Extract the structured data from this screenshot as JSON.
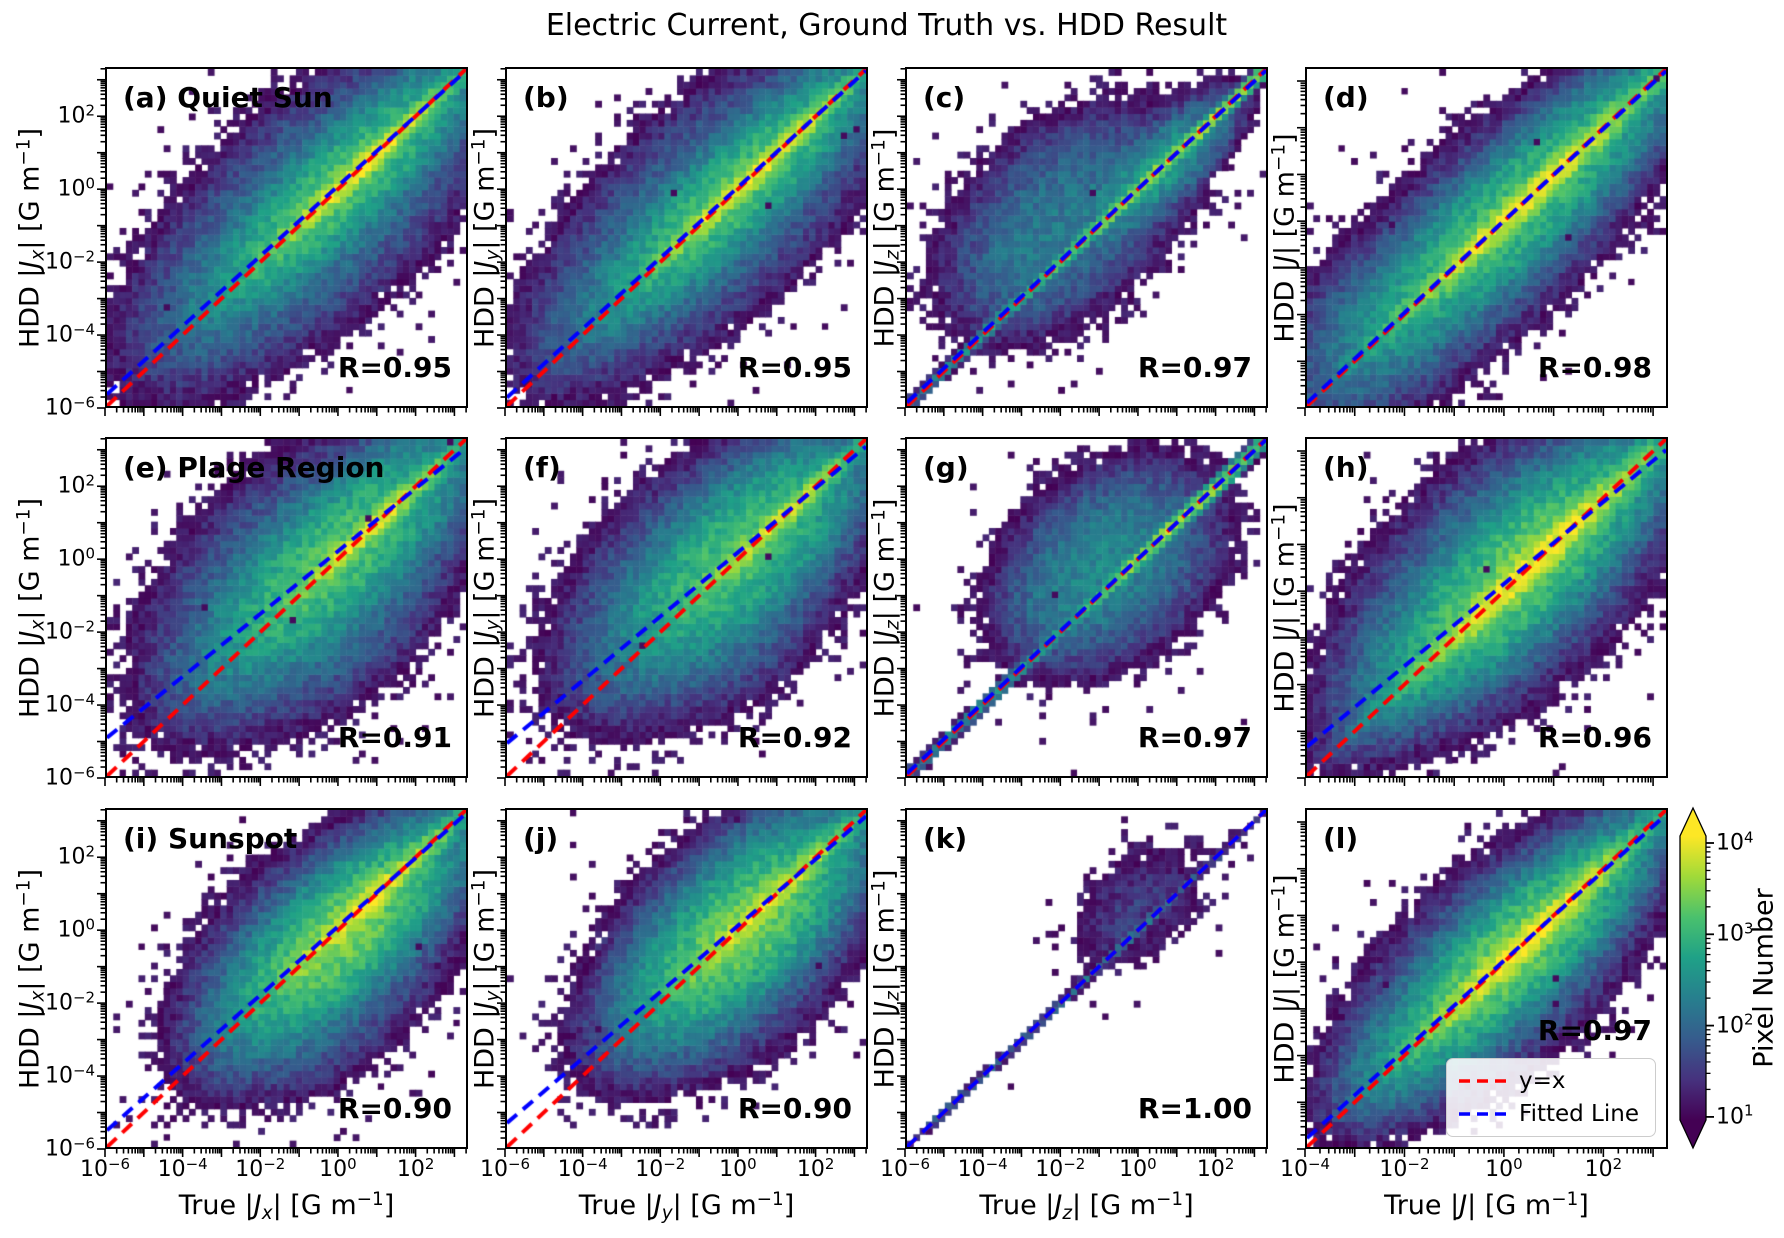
{
  "figure": {
    "title": "Electric Current, Ground Truth vs. HDD Result",
    "background": "#ffffff",
    "text_color": "#000000"
  },
  "legend": {
    "items": [
      {
        "label": "y=x",
        "color": "#ff0000",
        "style": "dashed"
      },
      {
        "label": "Fitted Line",
        "color": "#0000ff",
        "style": "dashed"
      }
    ]
  },
  "colorbar": {
    "label": "Pixel Number",
    "tick_exponents": [
      4,
      3,
      2,
      1
    ],
    "extend": "both",
    "colormap": "viridis",
    "top_arrow_color": "#fde725",
    "bottom_arrow_color": "#440154"
  },
  "chart_data": {
    "type": "heatmap",
    "title": "Electric Current, Ground Truth vs. HDD Result",
    "grid": {
      "rows": 3,
      "cols": 4
    },
    "row_regions": [
      "Quiet Sun",
      "Plage Region",
      "Sunspot"
    ],
    "col_quantities": [
      "|J_x|",
      "|J_y|",
      "|J_z|",
      "|J|"
    ],
    "axes_units": "[G m^-1]",
    "scale": "log-log",
    "count_scale": {
      "log_min": 0.78,
      "log_max": 4.48
    },
    "line_colors": {
      "y_equals_x": "#ff0000",
      "fitted": "#0000ff"
    },
    "viridis_stops": [
      "#440154",
      "#46327e",
      "#365c8d",
      "#277f8e",
      "#1fa187",
      "#4ac16d",
      "#a0da39",
      "#fde725"
    ],
    "panels": [
      {
        "id": "a",
        "label": "(a)",
        "region": "Quiet Sun",
        "row": 0,
        "col": 0,
        "r_label": "R=0.95",
        "r_value": 0.95,
        "ylabel": "HDD |*J*~*x*~| [G m^−1^]",
        "x_range": [
          -6,
          3.35
        ],
        "y_range": [
          -6,
          3.35
        ],
        "x_tick_exponents": [
          -6,
          -4,
          -2,
          0,
          2
        ],
        "y_tick_exponents": [
          2,
          0,
          -2,
          -4,
          -6
        ],
        "fit": {
          "slope": 0.96,
          "pivot": 2.2
        },
        "seed": 11,
        "density": [
          {
            "cx": 0.6,
            "cy": 0.6,
            "sl": 1.5,
            "sp": 0.13,
            "amp": 25000
          },
          {
            "cx": 0.1,
            "cy": 0.1,
            "sl": 2.0,
            "sp": 0.5,
            "amp": 3000
          },
          {
            "cx": -0.5,
            "cy": -0.5,
            "sl": 2.5,
            "sp": 1.15,
            "amp": 260
          },
          {
            "cx": -3.2,
            "cy": -3.2,
            "sl": 1.5,
            "sp": 0.9,
            "amp": 45
          }
        ]
      },
      {
        "id": "b",
        "label": "(b)",
        "region": null,
        "row": 0,
        "col": 1,
        "r_label": "R=0.95",
        "r_value": 0.95,
        "ylabel": "HDD |*J*~*y*~| [G m^−1^]",
        "x_range": [
          -6,
          3.35
        ],
        "y_range": [
          -6,
          3.35
        ],
        "x_tick_exponents": [
          -6,
          -4,
          -2,
          0,
          2
        ],
        "y_tick_exponents": [
          2,
          0,
          -2,
          -4,
          -6
        ],
        "fit": {
          "slope": 0.97,
          "pivot": 1.8
        },
        "seed": 22,
        "density": [
          {
            "cx": 0.5,
            "cy": 0.5,
            "sl": 1.6,
            "sp": 0.13,
            "amp": 25000
          },
          {
            "cx": 0.0,
            "cy": 0.0,
            "sl": 2.1,
            "sp": 0.5,
            "amp": 2800
          },
          {
            "cx": -0.6,
            "cy": -0.5,
            "sl": 2.5,
            "sp": 1.1,
            "amp": 250
          },
          {
            "cx": -3.4,
            "cy": -3.2,
            "sl": 1.4,
            "sp": 0.8,
            "amp": 40
          }
        ]
      },
      {
        "id": "c",
        "label": "(c)",
        "region": null,
        "row": 0,
        "col": 2,
        "r_label": "R=0.97",
        "r_value": 0.97,
        "ylabel": "HDD |*J*~*z*~| [G m^−1^]",
        "x_range": [
          -6,
          3.35
        ],
        "y_range": [
          -6,
          3.35
        ],
        "x_tick_exponents": [
          -6,
          -4,
          -2,
          0,
          2
        ],
        "y_tick_exponents": [
          2,
          0,
          -2,
          -4,
          -6
        ],
        "fit": {
          "slope": 0.985,
          "pivot": 0.5
        },
        "seed": 33,
        "density": [
          {
            "cx": 1.0,
            "cy": 1.0,
            "sl": 2.2,
            "sp": 0.07,
            "amp": 12000
          },
          {
            "cx": -3.0,
            "cy": -3.0,
            "sl": 2.0,
            "sp": 0.07,
            "amp": 700
          },
          {
            "cx": -1.8,
            "cy": -0.7,
            "sl": 1.6,
            "sp": 1.05,
            "amp": 170
          },
          {
            "cx": -3.0,
            "cy": -2.2,
            "sl": 1.0,
            "sp": 0.8,
            "amp": 70
          },
          {
            "cx": 0.6,
            "cy": 0.6,
            "sl": 1.1,
            "sp": 0.4,
            "amp": 700
          }
        ]
      },
      {
        "id": "d",
        "label": "(d)",
        "region": null,
        "row": 0,
        "col": 3,
        "r_label": "R=0.98",
        "r_value": 0.98,
        "ylabel": "HDD |*J*| [G m^−1^]",
        "x_range": [
          -4,
          3.3
        ],
        "y_range": [
          -4,
          3.3
        ],
        "x_tick_exponents": [
          -4,
          -2,
          0,
          2
        ],
        "y_tick_exponents": [
          2,
          0,
          -2
        ],
        "fit": {
          "slope": 0.985,
          "pivot": 0.5
        },
        "seed": 44,
        "density": [
          {
            "cx": 0.6,
            "cy": 0.6,
            "sl": 1.7,
            "sp": 0.13,
            "amp": 22000
          },
          {
            "cx": 0.2,
            "cy": 0.2,
            "sl": 1.9,
            "sp": 0.45,
            "amp": 2500
          },
          {
            "cx": -0.3,
            "cy": -0.3,
            "sl": 2.1,
            "sp": 0.8,
            "amp": 200
          },
          {
            "cx": -2.5,
            "cy": -2.3,
            "sl": 0.9,
            "sp": 0.75,
            "amp": 110
          }
        ]
      },
      {
        "id": "e",
        "label": "(e)",
        "region": "Plage Region",
        "row": 1,
        "col": 0,
        "r_label": "R=0.91",
        "r_value": 0.91,
        "ylabel": "HDD |*J*~*x*~| [G m^−1^]",
        "x_range": [
          -6,
          3.35
        ],
        "y_range": [
          -6,
          3.35
        ],
        "x_tick_exponents": [
          -6,
          -4,
          -2,
          0,
          2
        ],
        "y_tick_exponents": [
          2,
          0,
          -2,
          -4,
          -6
        ],
        "fit": {
          "slope": 0.86,
          "pivot": 1.6
        },
        "seed": 55,
        "density": [
          {
            "cx": 0.9,
            "cy": 0.9,
            "sl": 1.25,
            "sp": 0.13,
            "amp": 18000
          },
          {
            "cx": 0.0,
            "cy": 0.1,
            "sl": 1.9,
            "sp": 0.65,
            "amp": 2500
          },
          {
            "cx": -0.7,
            "cy": -0.5,
            "sl": 2.2,
            "sp": 1.25,
            "amp": 260
          },
          {
            "cx": -0.2,
            "cy": -1.8,
            "sl": 1.3,
            "sp": 0.9,
            "amp": 55
          }
        ]
      },
      {
        "id": "f",
        "label": "(f)",
        "region": null,
        "row": 1,
        "col": 1,
        "r_label": "R=0.92",
        "r_value": 0.92,
        "ylabel": "HDD |*J*~*y*~| [G m^−1^]",
        "x_range": [
          -6,
          3.35
        ],
        "y_range": [
          -6,
          3.35
        ],
        "x_tick_exponents": [
          -6,
          -4,
          -2,
          0,
          2
        ],
        "y_tick_exponents": [
          2,
          0,
          -2,
          -4,
          -6
        ],
        "fit": {
          "slope": 0.88,
          "pivot": 1.6
        },
        "seed": 66,
        "density": [
          {
            "cx": 0.9,
            "cy": 0.9,
            "sl": 1.3,
            "sp": 0.13,
            "amp": 16000
          },
          {
            "cx": 0.1,
            "cy": 0.2,
            "sl": 1.8,
            "sp": 0.7,
            "amp": 2200
          },
          {
            "cx": -0.6,
            "cy": -0.4,
            "sl": 2.1,
            "sp": 1.2,
            "amp": 240
          },
          {
            "cx": -0.1,
            "cy": -1.9,
            "sl": 1.2,
            "sp": 0.9,
            "amp": 50
          }
        ]
      },
      {
        "id": "g",
        "label": "(g)",
        "region": null,
        "row": 1,
        "col": 2,
        "r_label": "R=0.97",
        "r_value": 0.97,
        "ylabel": "HDD |*J*~*z*~| [G m^−1^]",
        "x_range": [
          -6,
          3.35
        ],
        "y_range": [
          -6,
          3.35
        ],
        "x_tick_exponents": [
          -6,
          -4,
          -2,
          0,
          2
        ],
        "y_tick_exponents": [
          2,
          0,
          -2,
          -4,
          -6
        ],
        "fit": {
          "slope": 0.99,
          "pivot": 1.0
        },
        "seed": 77,
        "density": [
          {
            "cx": 1.0,
            "cy": 1.0,
            "sl": 1.6,
            "sp": 0.08,
            "amp": 10000
          },
          {
            "cx": -3.2,
            "cy": -3.2,
            "sl": 2.2,
            "sp": 0.07,
            "amp": 500
          },
          {
            "cx": -0.7,
            "cy": -0.1,
            "sl": 1.4,
            "sp": 1.0,
            "amp": 300
          },
          {
            "cx": -2.0,
            "cy": -1.2,
            "sl": 0.8,
            "sp": 0.7,
            "amp": 80
          }
        ]
      },
      {
        "id": "h",
        "label": "(h)",
        "region": null,
        "row": 1,
        "col": 3,
        "r_label": "R=0.96",
        "r_value": 0.96,
        "ylabel": "HDD |*J*| [G m^−1^]",
        "x_range": [
          -4,
          3.3
        ],
        "y_range": [
          -4,
          3.3
        ],
        "x_tick_exponents": [
          -4,
          -2,
          0,
          2
        ],
        "y_tick_exponents": [
          2,
          0,
          -2
        ],
        "fit": {
          "slope": 0.88,
          "pivot": 1.3
        },
        "seed": 88,
        "density": [
          {
            "cx": 0.6,
            "cy": 0.6,
            "sl": 1.5,
            "sp": 0.15,
            "amp": 26000
          },
          {
            "cx": 0.3,
            "cy": 0.4,
            "sl": 1.6,
            "sp": 0.5,
            "amp": 4000
          },
          {
            "cx": 0.0,
            "cy": 0.3,
            "sl": 1.8,
            "sp": 0.95,
            "amp": 280
          },
          {
            "cx": 0.5,
            "cy": 1.6,
            "sl": 0.9,
            "sp": 0.55,
            "amp": 120
          }
        ]
      },
      {
        "id": "i",
        "label": "(i)",
        "region": "Sunspot",
        "row": 2,
        "col": 0,
        "r_label": "R=0.90",
        "r_value": 0.9,
        "xlabel": "True |*J*~*x*~| [G m^−1^]",
        "ylabel": "HDD |*J*~*x*~| [G m^−1^]",
        "x_range": [
          -6,
          3.35
        ],
        "y_range": [
          -6,
          3.35
        ],
        "x_tick_exponents": [
          -6,
          -4,
          -2,
          0,
          2
        ],
        "y_tick_exponents": [
          2,
          0,
          -2,
          -4,
          -6
        ],
        "fit": {
          "slope": 0.94,
          "pivot": 1.7
        },
        "seed": 99,
        "density": [
          {
            "cx": 0.8,
            "cy": 0.8,
            "sl": 1.4,
            "sp": 0.15,
            "amp": 20000
          },
          {
            "cx": 0.2,
            "cy": 0.0,
            "sl": 1.6,
            "sp": 0.6,
            "amp": 5000
          },
          {
            "cx": -0.4,
            "cy": -0.7,
            "sl": 1.8,
            "sp": 1.1,
            "amp": 320
          },
          {
            "cx": -1.0,
            "cy": -2.3,
            "sl": 1.1,
            "sp": 0.9,
            "amp": 45
          }
        ]
      },
      {
        "id": "j",
        "label": "(j)",
        "region": null,
        "row": 2,
        "col": 1,
        "r_label": "R=0.90",
        "r_value": 0.9,
        "xlabel": "True |*J*~*y*~| [G m^−1^]",
        "ylabel": "HDD |*J*~*y*~| [G m^−1^]",
        "x_range": [
          -6,
          3.35
        ],
        "y_range": [
          -6,
          3.35
        ],
        "x_tick_exponents": [
          -6,
          -4,
          -2,
          0,
          2
        ],
        "y_tick_exponents": [
          2,
          0,
          -2,
          -4,
          -6
        ],
        "fit": {
          "slope": 0.91,
          "pivot": 1.4
        },
        "seed": 110,
        "density": [
          {
            "cx": 0.8,
            "cy": 0.8,
            "sl": 1.4,
            "sp": 0.15,
            "amp": 16000
          },
          {
            "cx": 0.2,
            "cy": 0.1,
            "sl": 1.6,
            "sp": 0.65,
            "amp": 4500
          },
          {
            "cx": -0.3,
            "cy": -0.6,
            "sl": 1.8,
            "sp": 1.1,
            "amp": 300
          },
          {
            "cx": 0.6,
            "cy": 2.2,
            "sl": 0.9,
            "sp": 0.6,
            "amp": 90
          },
          {
            "cx": -0.6,
            "cy": 0.9,
            "sl": 0.9,
            "sp": 0.7,
            "amp": 70
          }
        ]
      },
      {
        "id": "k",
        "label": "(k)",
        "region": null,
        "row": 2,
        "col": 2,
        "r_label": "R=1.00",
        "r_value": 1.0,
        "xlabel": "True |*J*~*z*~| [G m^−1^]",
        "ylabel": "HDD |*J*~*z*~| [G m^−1^]",
        "x_range": [
          -6,
          3.35
        ],
        "y_range": [
          -6,
          3.35
        ],
        "x_tick_exponents": [
          -6,
          -4,
          -2,
          0,
          2
        ],
        "y_tick_exponents": [
          2,
          0,
          -2,
          -4,
          -6
        ],
        "fit": {
          "slope": 0.999,
          "pivot": 0
        },
        "seed": 121,
        "density": [
          {
            "cx": -0.8,
            "cy": -0.8,
            "sl": 2.8,
            "sp": 0.05,
            "amp": 150
          },
          {
            "cx": -4.5,
            "cy": -4.5,
            "sl": 1.5,
            "sp": 0.05,
            "amp": 60
          },
          {
            "cx": 0.2,
            "cy": 0.9,
            "sl": 1.0,
            "sp": 0.75,
            "amp": 22
          },
          {
            "cx": -0.6,
            "cy": 0.1,
            "sl": 0.7,
            "sp": 0.5,
            "amp": 14
          }
        ]
      },
      {
        "id": "l",
        "label": "(l)",
        "region": null,
        "row": 2,
        "col": 3,
        "r_label": "R=0.97",
        "r_value": 0.97,
        "xlabel": "True |*J*| [G m^−1^]",
        "ylabel": "HDD |*J*| [G m^−1^]",
        "x_range": [
          -4,
          3.3
        ],
        "y_range": [
          -4,
          3.3
        ],
        "x_tick_exponents": [
          -4,
          -2,
          0,
          2
        ],
        "y_tick_exponents": [
          2,
          0,
          -2
        ],
        "fit": {
          "slope": 0.96,
          "pivot": 0.8
        },
        "seed": 132,
        "has_legend": true,
        "r_raised": true,
        "density": [
          {
            "cx": 0.5,
            "cy": 0.5,
            "sl": 1.35,
            "sp": 0.13,
            "amp": 30000
          },
          {
            "cx": 0.25,
            "cy": 0.25,
            "sl": 1.5,
            "sp": 0.42,
            "amp": 5000
          },
          {
            "cx": -0.1,
            "cy": -0.1,
            "sl": 1.7,
            "sp": 0.8,
            "amp": 300
          },
          {
            "cx": -2.2,
            "cy": -2.2,
            "sl": 0.7,
            "sp": 0.5,
            "amp": 140
          }
        ]
      }
    ]
  }
}
